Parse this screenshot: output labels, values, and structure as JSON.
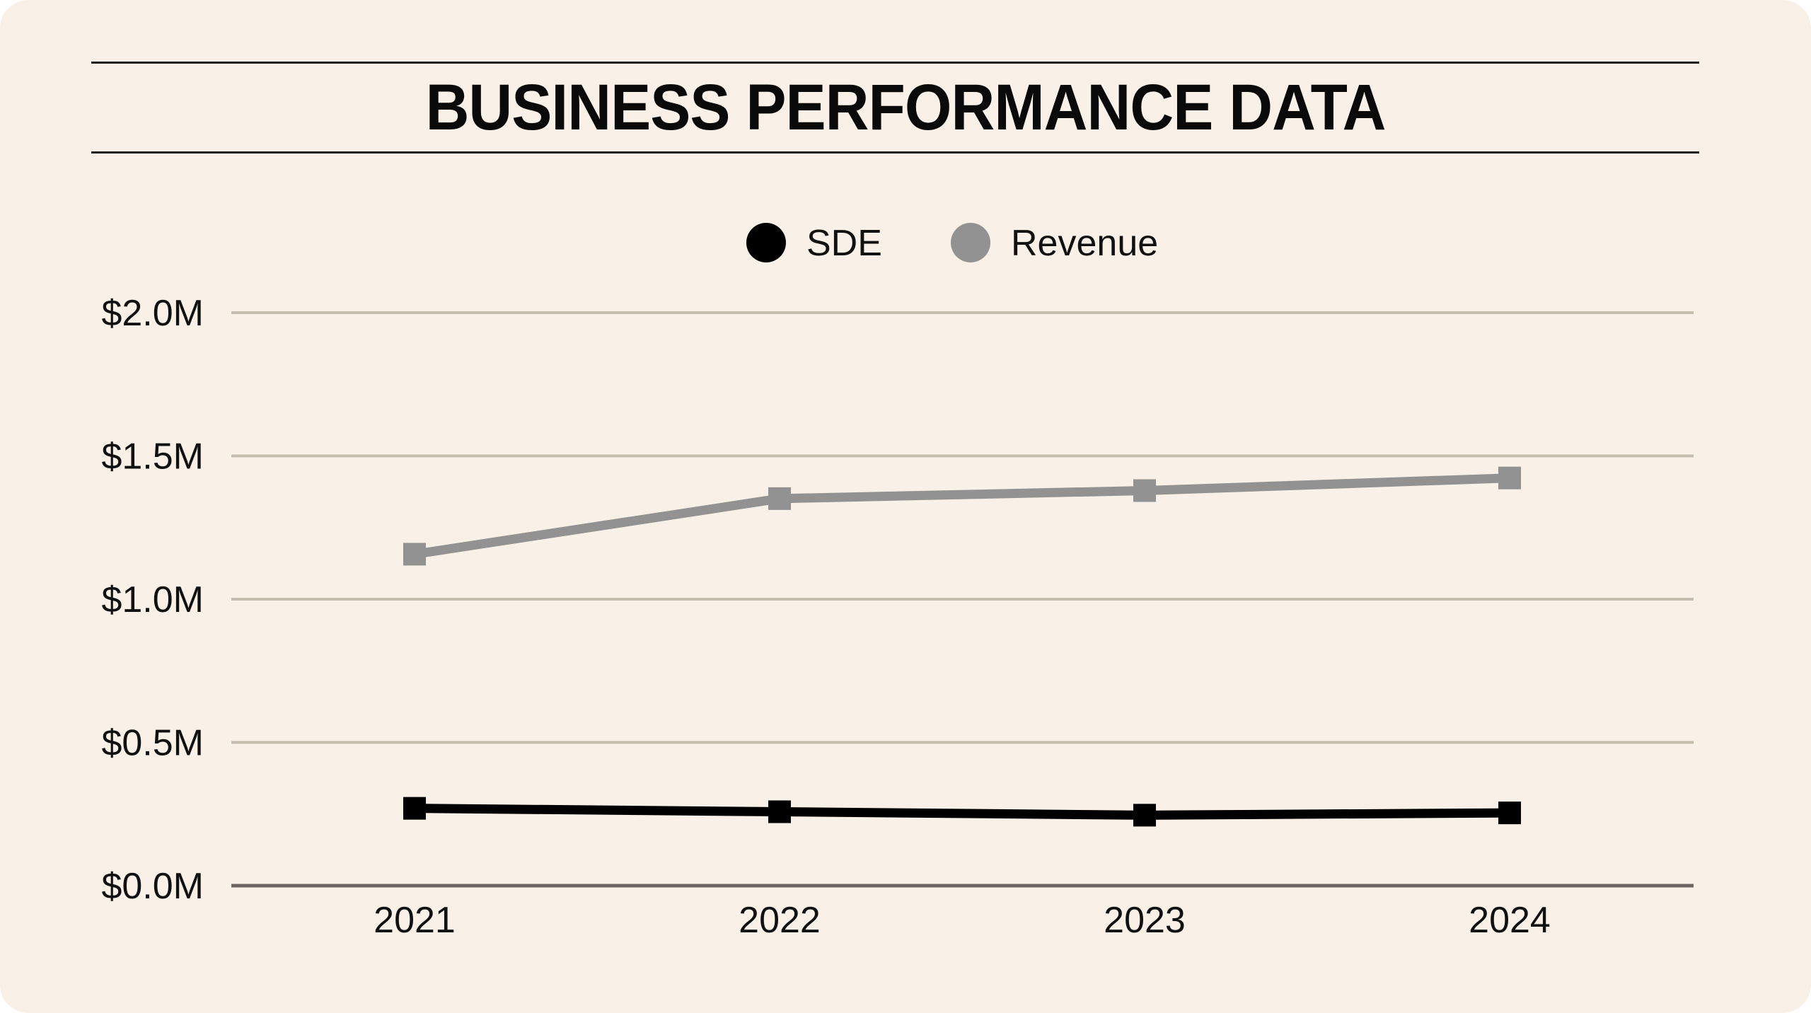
{
  "chart_data": {
    "type": "line",
    "title": "BUSINESS PERFORMANCE DATA",
    "xlabel": "",
    "ylabel": "",
    "categories": [
      "2021",
      "2022",
      "2023",
      "2024"
    ],
    "ylim": [
      0,
      2.0
    ],
    "yticks": [
      0,
      0.5,
      1.0,
      1.5,
      2.0
    ],
    "ytick_labels": [
      "$0.0M",
      "$0.5M",
      "$1.0M",
      "$1.5M",
      "$2.0M"
    ],
    "grid": true,
    "legend_position": "top-center",
    "series": [
      {
        "name": "SDE",
        "values": [
          0.27,
          0.258,
          0.246,
          0.254
        ],
        "color": "#000000",
        "marker": "square"
      },
      {
        "name": "Revenue",
        "values": [
          1.157,
          1.351,
          1.379,
          1.423
        ],
        "color": "#929292",
        "marker": "square"
      }
    ]
  },
  "colors": {
    "background": "#f9f1e7",
    "grid": "#c5bcb0",
    "axis": "#6e6660"
  }
}
